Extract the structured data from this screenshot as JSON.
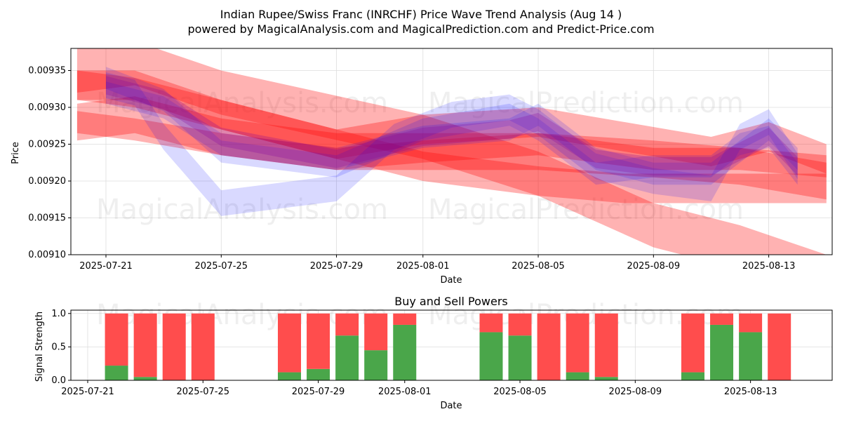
{
  "header": {
    "title_line1": "Indian Rupee/Swiss Franc (INRCHF) Price Wave Trend Analysis (Aug 14 )",
    "title_line2": "powered by MagicalAnalysis.com and MagicalPrediction.com and Predict-Price.com"
  },
  "watermarks": {
    "top_left": "MagicalAnalysis.com",
    "top_right": "MagicalPrediction.com",
    "mid_left": "MagicalAnalysis.com",
    "mid_right": "MagicalPrediction.com",
    "bottom_left": "MagicalAnalysis.com",
    "bottom_right": "MagicalPrediction.com"
  },
  "colors": {
    "red_band": "#ff0000",
    "blue_band": "#0000ff",
    "purple_band": "#8000a0",
    "sell": "#ff4d4d",
    "buy": "#4aa64a",
    "grid": "#dddddd"
  },
  "chart_data": [
    {
      "type": "line",
      "title": "",
      "xlabel": "Date",
      "ylabel": "Price",
      "x_range": [
        "2025-07-20",
        "2025-08-15"
      ],
      "ylim": [
        0.0091,
        0.00938
      ],
      "x_ticks": [
        "2025-07-21",
        "2025-07-25",
        "2025-07-29",
        "2025-08-01",
        "2025-08-05",
        "2025-08-09",
        "2025-08-13"
      ],
      "y_ticks": [
        0.0091,
        0.00915,
        0.0092,
        0.00925,
        0.0093,
        0.00935
      ],
      "y_tick_labels": [
        "0.00910",
        "0.00915",
        "0.00920",
        "0.00925",
        "0.00930",
        "0.00935"
      ],
      "series": [
        {
          "name": "red-band-1",
          "color": "red",
          "width": 6e-05,
          "x": [
            "2025-07-20",
            "2025-07-22",
            "2025-07-25",
            "2025-08-01",
            "2025-08-05",
            "2025-08-09",
            "2025-08-12",
            "2025-08-15"
          ],
          "values": [
            0.00935,
            0.00936,
            0.00932,
            0.00926,
            0.00921,
            0.00914,
            0.00911,
            0.00907
          ]
        },
        {
          "name": "red-band-2",
          "color": "red",
          "width": 5e-05,
          "x": [
            "2025-07-20",
            "2025-07-22",
            "2025-07-25",
            "2025-07-29",
            "2025-08-01",
            "2025-08-05",
            "2025-08-09",
            "2025-08-12",
            "2025-08-15"
          ],
          "values": [
            0.00928,
            0.00929,
            0.00926,
            0.00924,
            0.00924,
            0.00924,
            0.00923,
            0.00922,
            0.0092
          ]
        },
        {
          "name": "red-band-3",
          "color": "red",
          "width": 3e-05,
          "x": [
            "2025-07-20",
            "2025-07-22",
            "2025-07-25",
            "2025-07-29",
            "2025-08-01",
            "2025-08-05",
            "2025-08-09",
            "2025-08-12",
            "2025-08-15"
          ],
          "values": [
            0.00928,
            0.00927,
            0.00925,
            0.00923,
            0.00924,
            0.00925,
            0.00923,
            0.00923,
            0.00922
          ]
        },
        {
          "name": "red-band-4",
          "color": "red",
          "width": 4e-05,
          "x": [
            "2025-07-20",
            "2025-07-22",
            "2025-07-25",
            "2025-07-29",
            "2025-08-01",
            "2025-08-05",
            "2025-08-08",
            "2025-08-11",
            "2025-08-15"
          ],
          "values": [
            0.00933,
            0.00933,
            0.00929,
            0.00925,
            0.00922,
            0.0092,
            0.00919,
            0.00919,
            0.00919
          ]
        },
        {
          "name": "red-band-5",
          "color": "red",
          "width": 4e-05,
          "x": [
            "2025-07-20",
            "2025-07-22",
            "2025-07-25",
            "2025-07-29",
            "2025-08-01",
            "2025-08-05",
            "2025-08-08",
            "2025-08-11",
            "2025-08-13",
            "2025-08-15"
          ],
          "values": [
            0.00933,
            0.00932,
            0.00929,
            0.00925,
            0.00927,
            0.00928,
            0.00926,
            0.00924,
            0.00926,
            0.00923
          ]
        },
        {
          "name": "blue-wave-1",
          "color": "blue",
          "width": 3.5e-05,
          "x": [
            "2025-07-21",
            "2025-07-22",
            "2025-07-23",
            "2025-07-25",
            "2025-07-29",
            "2025-07-31",
            "2025-08-02",
            "2025-08-04",
            "2025-08-05",
            "2025-08-07",
            "2025-08-09",
            "2025-08-11",
            "2025-08-12",
            "2025-08-13",
            "2025-08-14"
          ],
          "values": [
            0.00933,
            0.00932,
            0.00926,
            0.00917,
            0.00919,
            0.00926,
            0.00929,
            0.0093,
            0.00928,
            0.00922,
            0.0092,
            0.00919,
            0.00926,
            0.00928,
            0.00922
          ]
        },
        {
          "name": "blue-wave-2",
          "color": "blue",
          "width": 3e-05,
          "x": [
            "2025-07-21",
            "2025-07-23",
            "2025-07-25",
            "2025-07-29",
            "2025-08-01",
            "2025-08-04",
            "2025-08-05",
            "2025-08-07",
            "2025-08-09",
            "2025-08-11",
            "2025-08-12",
            "2025-08-13",
            "2025-08-14"
          ],
          "values": [
            0.00934,
            0.00931,
            0.00924,
            0.00922,
            0.00927,
            0.00929,
            0.00927,
            0.00921,
            0.00922,
            0.00922,
            0.00925,
            0.00926,
            0.00921
          ]
        },
        {
          "name": "blue-wave-3",
          "color": "blue",
          "width": 3e-05,
          "x": [
            "2025-07-21",
            "2025-07-23",
            "2025-07-25",
            "2025-07-29",
            "2025-08-01",
            "2025-08-04",
            "2025-08-05",
            "2025-08-07",
            "2025-08-09",
            "2025-08-11",
            "2025-08-12",
            "2025-08-13",
            "2025-08-14"
          ],
          "values": [
            0.00932,
            0.0093,
            0.00925,
            0.00923,
            0.00926,
            0.00927,
            0.00929,
            0.00923,
            0.00921,
            0.00921,
            0.00924,
            0.00927,
            0.00923
          ]
        },
        {
          "name": "purple-wave",
          "color": "purple",
          "width": 2.5e-05,
          "x": [
            "2025-07-21",
            "2025-07-23",
            "2025-07-25",
            "2025-07-29",
            "2025-08-01",
            "2025-08-04",
            "2025-08-05",
            "2025-08-07",
            "2025-08-09",
            "2025-08-11",
            "2025-08-12",
            "2025-08-13",
            "2025-08-14"
          ],
          "values": [
            0.00933,
            0.00931,
            0.00926,
            0.00923,
            0.00926,
            0.00927,
            0.00928,
            0.00923,
            0.00922,
            0.00922,
            0.00924,
            0.00926,
            0.00922
          ]
        }
      ]
    },
    {
      "type": "bar",
      "title": "Buy and Sell Powers",
      "xlabel": "Date",
      "ylabel": "Signal Strength",
      "ylim": [
        0,
        1.05
      ],
      "y_ticks": [
        0.0,
        0.5,
        1.0
      ],
      "y_tick_labels": [
        "0.0",
        "0.5",
        "1.0"
      ],
      "x_range": [
        "2025-07-20",
        "2025-08-15"
      ],
      "x_ticks": [
        "2025-07-21",
        "2025-07-25",
        "2025-07-29",
        "2025-08-01",
        "2025-08-05",
        "2025-08-09",
        "2025-08-13"
      ],
      "categories": [
        "2025-07-22",
        "2025-07-23",
        "2025-07-24",
        "2025-07-25",
        "2025-07-28",
        "2025-07-29",
        "2025-07-30",
        "2025-07-31",
        "2025-08-01",
        "2025-08-04",
        "2025-08-05",
        "2025-08-06",
        "2025-08-07",
        "2025-08-08",
        "2025-08-11",
        "2025-08-12",
        "2025-08-13",
        "2025-08-14"
      ],
      "series": [
        {
          "name": "Buy",
          "values": [
            0.22,
            0.05,
            0.0,
            0.0,
            0.12,
            0.17,
            0.67,
            0.45,
            0.83,
            0.72,
            0.67,
            0.0,
            0.12,
            0.05,
            0.12,
            0.83,
            0.72,
            0.0
          ]
        },
        {
          "name": "Sell",
          "values": [
            0.78,
            0.95,
            1.0,
            1.0,
            0.88,
            0.83,
            0.33,
            0.55,
            0.17,
            0.28,
            0.33,
            1.0,
            0.88,
            0.95,
            0.88,
            0.17,
            0.28,
            1.0
          ]
        }
      ]
    }
  ]
}
